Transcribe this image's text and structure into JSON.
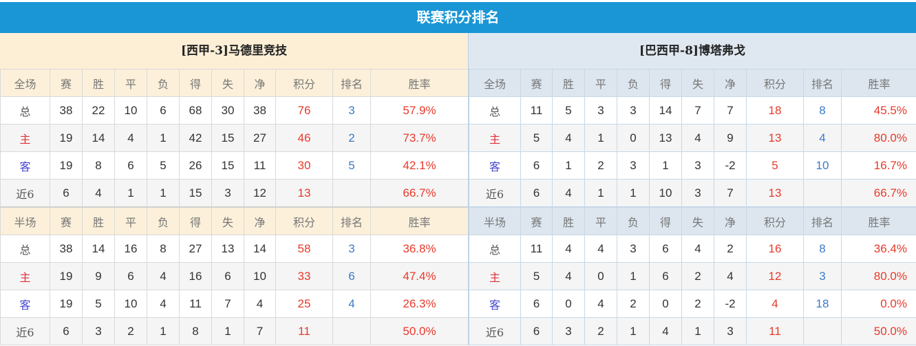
{
  "title": "联赛积分排名",
  "colors": {
    "title_bar": "#1a96d6",
    "points": "#e8392a",
    "rank": "#3a7ac8",
    "home_label": "#e0303a",
    "away_label": "#4646d0"
  },
  "teams": [
    {
      "name": "[西甲-3]马德里竞技",
      "sections": [
        {
          "headers": [
            "全场",
            "赛",
            "胜",
            "平",
            "负",
            "得",
            "失",
            "净",
            "积分",
            "排名",
            "胜率"
          ],
          "rows": [
            [
              "总",
              "38",
              "22",
              "10",
              "6",
              "68",
              "30",
              "38",
              "76",
              "3",
              "57.9%"
            ],
            [
              "主",
              "19",
              "14",
              "4",
              "1",
              "42",
              "15",
              "27",
              "46",
              "2",
              "73.7%"
            ],
            [
              "客",
              "19",
              "8",
              "6",
              "5",
              "26",
              "15",
              "11",
              "30",
              "5",
              "42.1%"
            ],
            [
              "近6",
              "6",
              "4",
              "1",
              "1",
              "15",
              "3",
              "12",
              "13",
              "",
              "66.7%"
            ]
          ]
        },
        {
          "headers": [
            "半场",
            "赛",
            "胜",
            "平",
            "负",
            "得",
            "失",
            "净",
            "积分",
            "排名",
            "胜率"
          ],
          "rows": [
            [
              "总",
              "38",
              "14",
              "16",
              "8",
              "27",
              "13",
              "14",
              "58",
              "3",
              "36.8%"
            ],
            [
              "主",
              "19",
              "9",
              "6",
              "4",
              "16",
              "6",
              "10",
              "33",
              "6",
              "47.4%"
            ],
            [
              "客",
              "19",
              "5",
              "10",
              "4",
              "11",
              "7",
              "4",
              "25",
              "4",
              "26.3%"
            ],
            [
              "近6",
              "6",
              "3",
              "2",
              "1",
              "8",
              "1",
              "7",
              "11",
              "",
              "50.0%"
            ]
          ]
        }
      ]
    },
    {
      "name": "[巴西甲-8]博塔弗戈",
      "sections": [
        {
          "headers": [
            "全场",
            "赛",
            "胜",
            "平",
            "负",
            "得",
            "失",
            "净",
            "积分",
            "排名",
            "胜率"
          ],
          "rows": [
            [
              "总",
              "11",
              "5",
              "3",
              "3",
              "14",
              "7",
              "7",
              "18",
              "8",
              "45.5%"
            ],
            [
              "主",
              "5",
              "4",
              "1",
              "0",
              "13",
              "4",
              "9",
              "13",
              "4",
              "80.0%"
            ],
            [
              "客",
              "6",
              "1",
              "2",
              "3",
              "1",
              "3",
              "-2",
              "5",
              "10",
              "16.7%"
            ],
            [
              "近6",
              "6",
              "4",
              "1",
              "1",
              "10",
              "3",
              "7",
              "13",
              "",
              "66.7%"
            ]
          ]
        },
        {
          "headers": [
            "半场",
            "赛",
            "胜",
            "平",
            "负",
            "得",
            "失",
            "净",
            "积分",
            "排名",
            "胜率"
          ],
          "rows": [
            [
              "总",
              "11",
              "4",
              "4",
              "3",
              "6",
              "4",
              "2",
              "16",
              "8",
              "36.4%"
            ],
            [
              "主",
              "5",
              "4",
              "0",
              "1",
              "6",
              "2",
              "4",
              "12",
              "3",
              "80.0%"
            ],
            [
              "客",
              "6",
              "0",
              "4",
              "2",
              "0",
              "2",
              "-2",
              "4",
              "18",
              "0.0%"
            ],
            [
              "近6",
              "6",
              "3",
              "2",
              "1",
              "4",
              "1",
              "3",
              "11",
              "",
              "50.0%"
            ]
          ]
        }
      ]
    }
  ]
}
